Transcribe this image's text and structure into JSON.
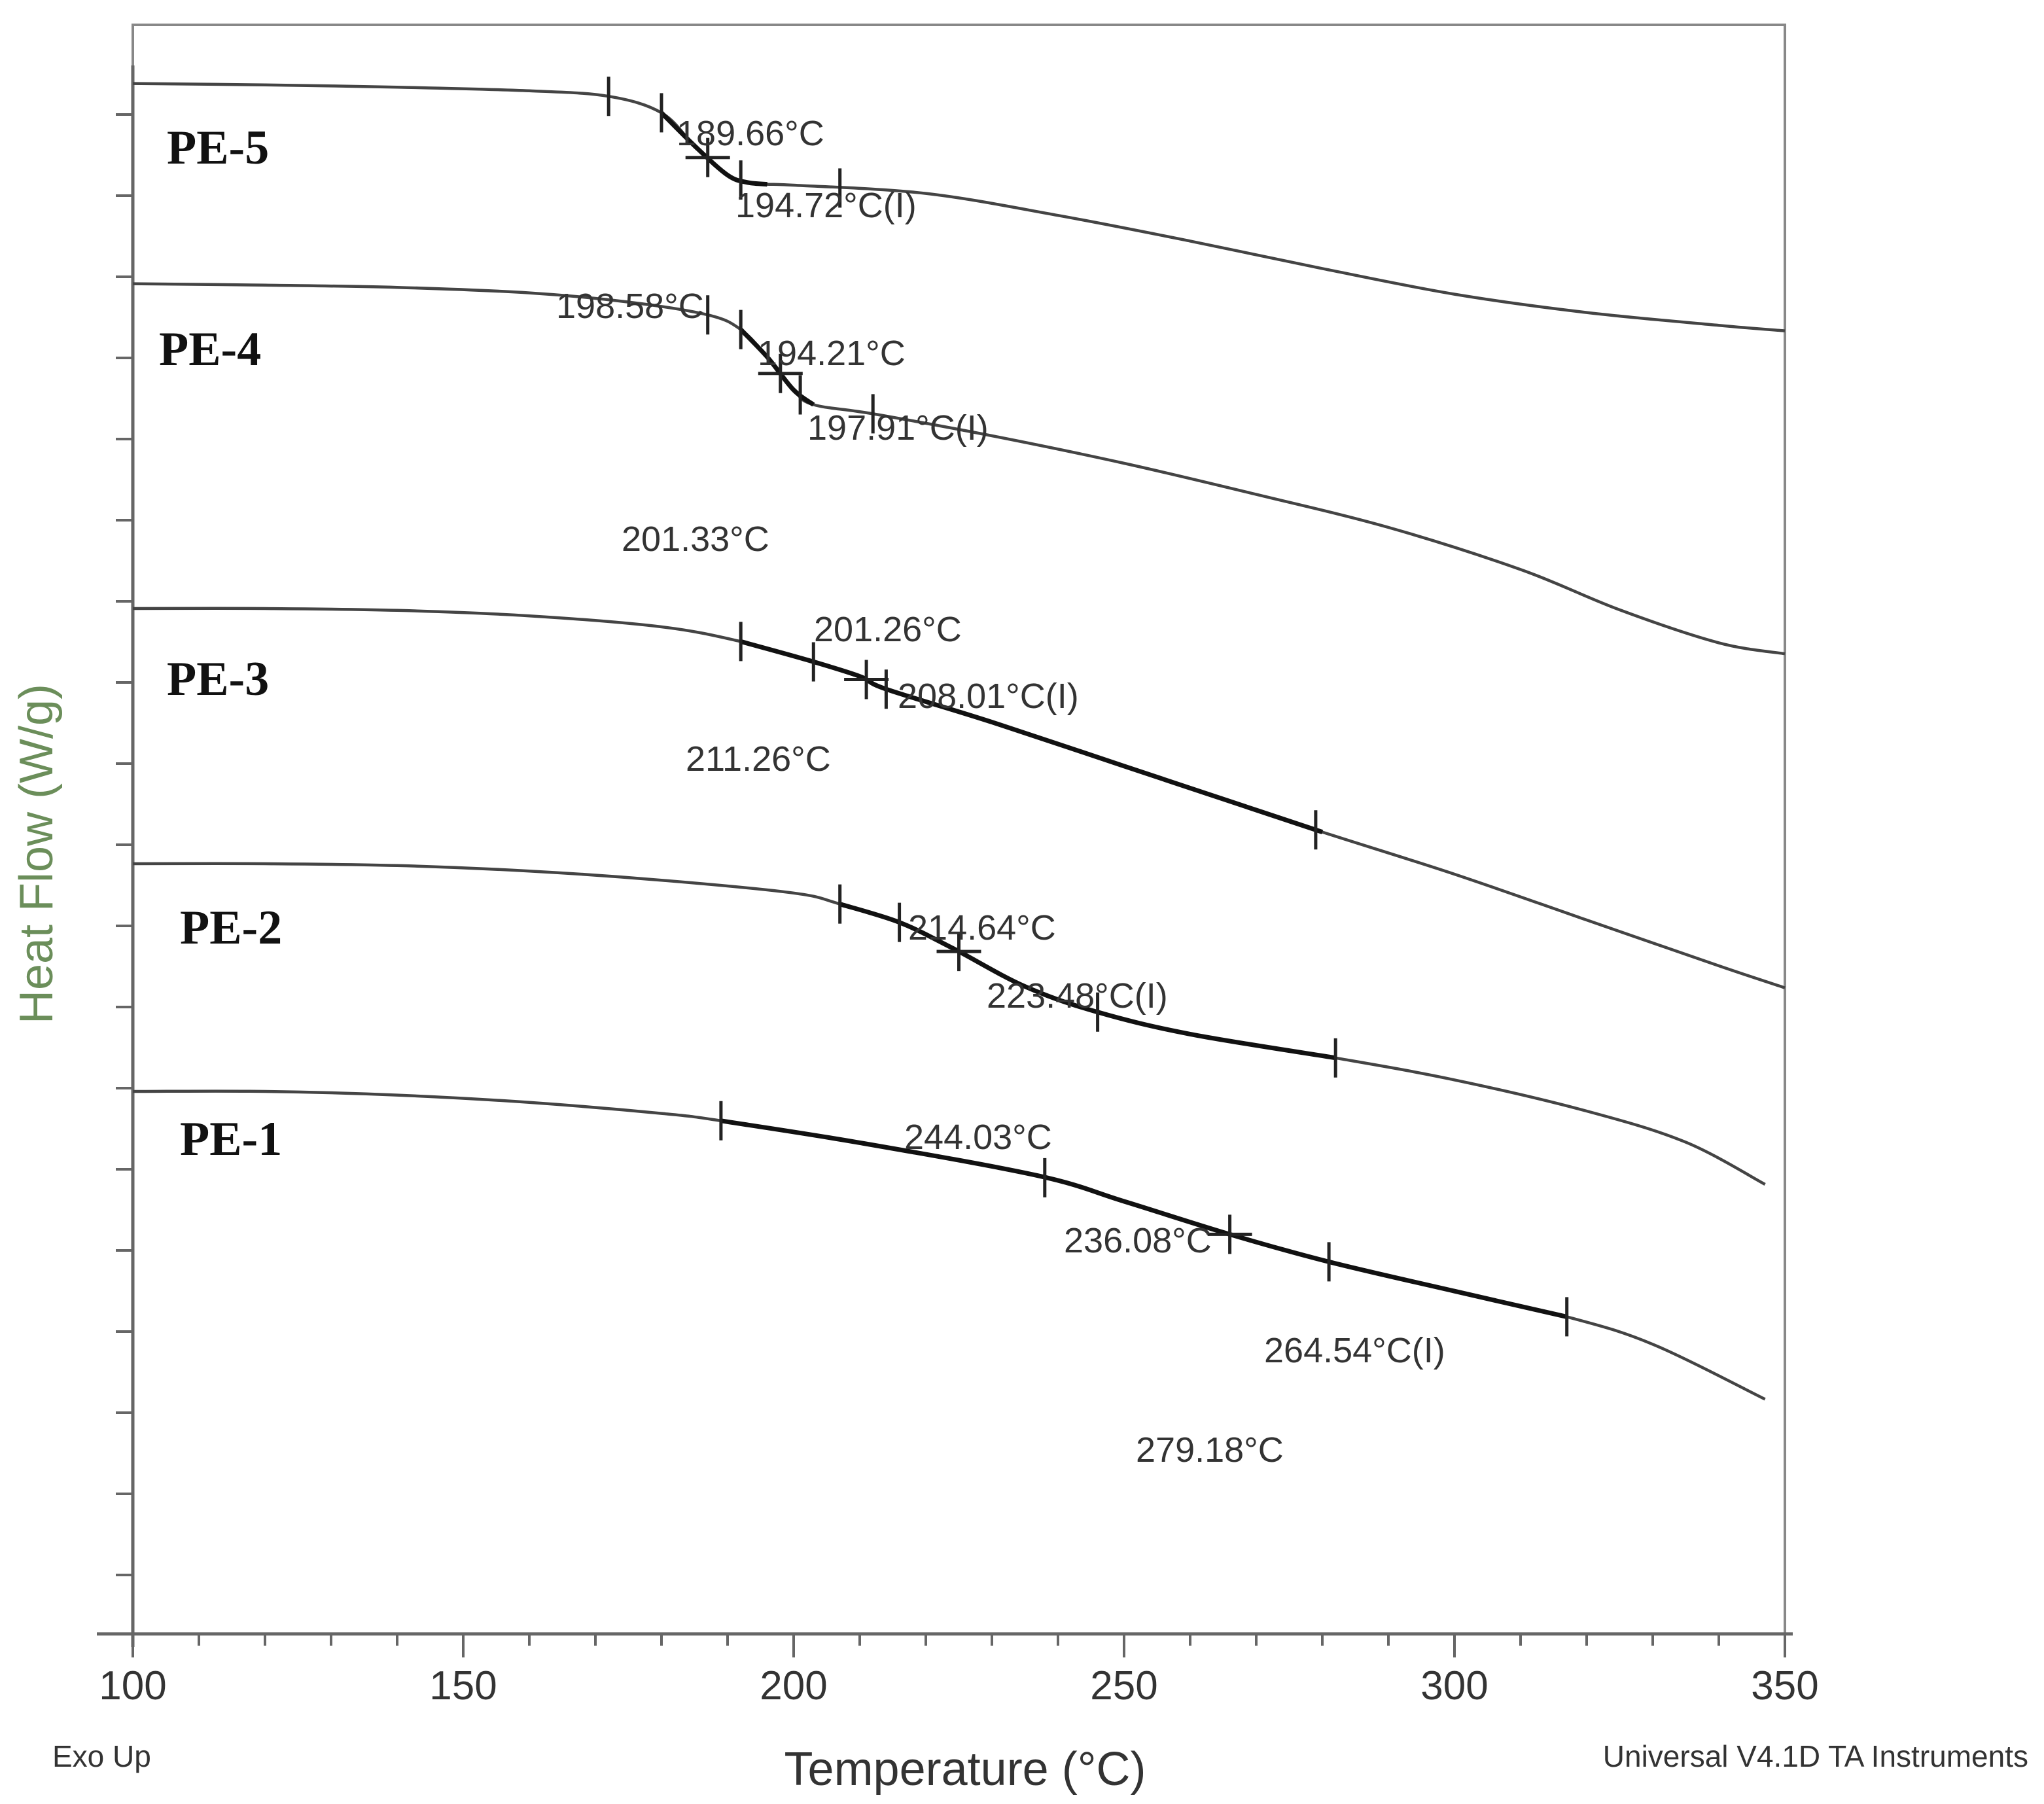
{
  "chart_data": {
    "type": "line",
    "xlabel": "Temperature (°C)",
    "ylabel": "Heat Flow (W/g)",
    "xlim": [
      100,
      350
    ],
    "xticks": [
      100,
      150,
      200,
      250,
      300,
      350
    ],
    "y_tick_labels_shown": false,
    "footer_left": "Exo Up",
    "footer_right": "Universal V4.1D TA Instruments",
    "series": [
      {
        "name": "PE-5",
        "label": "PE-5",
        "x": [
          100,
          120,
          140,
          160,
          172,
          180,
          185,
          190,
          193,
          196,
          200,
          220,
          240,
          260,
          280,
          300,
          320,
          340,
          350
        ],
        "level": [
          0.2,
          0.28,
          0.4,
          0.6,
          0.9,
          1.8,
          3.6,
          5.2,
          5.6,
          5.7,
          5.75,
          6.2,
          7.4,
          8.8,
          10.3,
          11.7,
          12.7,
          13.4,
          13.7
        ],
        "transition": {
          "x": [
            180,
            185,
            190,
            193,
            196
          ],
          "level": [
            1.8,
            3.6,
            5.2,
            5.6,
            5.7
          ]
        },
        "markers": [
          172,
          180,
          187,
          192,
          207
        ],
        "annotations": [
          "189.66°C",
          "194.72°C(I)",
          "198.58°C"
        ]
      },
      {
        "name": "PE-4",
        "label": "PE-4",
        "x": [
          100,
          120,
          140,
          160,
          175,
          187,
          192,
          196,
          200,
          203,
          212,
          230,
          250,
          270,
          290,
          310,
          325,
          340,
          350
        ],
        "level": [
          0.2,
          0.28,
          0.4,
          0.7,
          1.2,
          1.9,
          2.7,
          4.2,
          6.0,
          6.8,
          7.3,
          8.5,
          10.0,
          11.7,
          13.5,
          15.8,
          18.0,
          19.8,
          20.4
        ],
        "transition": {
          "x": [
            192,
            196,
            200,
            203
          ],
          "level": [
            2.7,
            4.2,
            6.0,
            6.8
          ]
        },
        "markers": [
          187,
          192,
          198,
          201,
          212
        ],
        "annotations": [
          "194.21°C",
          "197.91°C(I)",
          "201.33°C"
        ]
      },
      {
        "name": "PE-3",
        "label": "PE-3",
        "x": [
          100,
          120,
          140,
          160,
          180,
          192,
          202,
          210,
          214,
          230,
          250,
          265,
          280,
          300,
          320,
          340,
          350
        ],
        "level": [
          0.0,
          0.0,
          0.1,
          0.4,
          1.0,
          1.8,
          2.8,
          3.7,
          4.4,
          6.2,
          8.6,
          10.4,
          12.2,
          14.5,
          17.0,
          19.5,
          20.7
        ],
        "transition": {
          "x": [
            192,
            202,
            210,
            214,
            230,
            250,
            265,
            280
          ],
          "level": [
            1.8,
            2.8,
            3.7,
            4.4,
            6.2,
            8.6,
            10.4,
            12.2
          ]
        },
        "markers": [
          192,
          203,
          211,
          214,
          279
        ],
        "annotations": [
          "201.26°C",
          "208.01°C(I)",
          "211.26°C"
        ]
      },
      {
        "name": "PE-2",
        "label": "PE-2",
        "x": [
          100,
          120,
          140,
          160,
          180,
          200,
          207,
          216,
          224,
          235,
          246,
          260,
          282,
          300,
          320,
          335,
          347
        ],
        "level": [
          0.0,
          0.0,
          0.1,
          0.4,
          0.9,
          1.6,
          2.2,
          3.2,
          4.6,
          6.7,
          8.1,
          9.3,
          10.6,
          11.8,
          13.5,
          15.2,
          17.5
        ],
        "transition": {
          "x": [
            207,
            216,
            224,
            235,
            246,
            260,
            282
          ],
          "level": [
            2.2,
            3.2,
            4.6,
            6.7,
            8.1,
            9.3,
            10.6
          ]
        },
        "markers": [
          207,
          216,
          225,
          246,
          282
        ],
        "annotations": [
          "214.64°C",
          "223.48°C(I)",
          "244.03°C"
        ]
      },
      {
        "name": "PE-1",
        "label": "PE-1",
        "x": [
          100,
          120,
          140,
          160,
          180,
          189,
          210,
          237,
          250,
          266,
          281,
          300,
          317,
          330,
          347
        ],
        "level": [
          0.0,
          0.0,
          0.2,
          0.6,
          1.2,
          1.6,
          2.8,
          4.6,
          6.0,
          7.8,
          9.3,
          10.9,
          12.3,
          13.8,
          16.8
        ],
        "transition": {
          "x": [
            189,
            210,
            237,
            250,
            266,
            281,
            300,
            317
          ],
          "level": [
            1.6,
            2.8,
            4.6,
            6.0,
            7.8,
            9.3,
            10.9,
            12.3
          ]
        },
        "markers": [
          189,
          238,
          266,
          281,
          317
        ],
        "annotations": [
          "236.08°C",
          "264.54°C(I)",
          "279.18°C"
        ]
      }
    ]
  },
  "colors": {
    "ylabel": "#6b8e5a",
    "curve": "#444444",
    "transition": "#111111"
  }
}
